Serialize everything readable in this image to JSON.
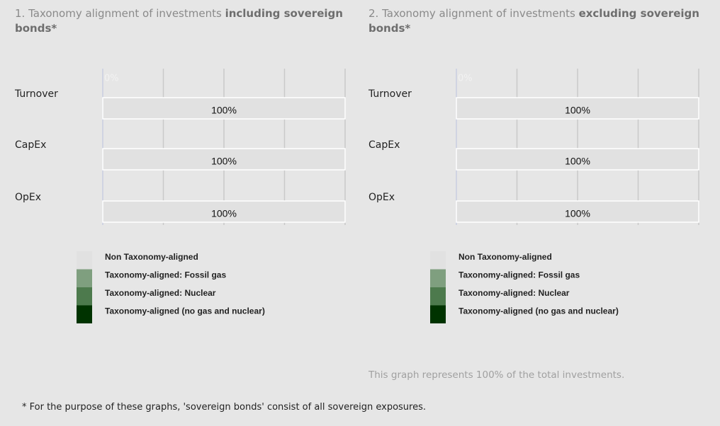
{
  "chart_data": [
    {
      "type": "hbar_stacked",
      "title": [
        "1. Taxonomy alignment of investments ",
        "including sovereign bonds*"
      ],
      "annotation": "0%",
      "categories": [
        "Turnover",
        "CapEx",
        "OpEx"
      ],
      "xlim": [
        0,
        100
      ],
      "xticks": [
        0,
        25,
        50,
        75,
        100
      ],
      "grid": true,
      "series": [
        {
          "name": "Non Taxonomy-aligned",
          "color": "#e1e1e1",
          "values": [
            100,
            100,
            100
          ],
          "value_labels": [
            "100%",
            "100%",
            "100%"
          ]
        },
        {
          "name": "Taxonomy-aligned: Fossil gas",
          "color": "#7f9f7f",
          "values": [
            0,
            0,
            0
          ]
        },
        {
          "name": "Taxonomy-aligned: Nuclear",
          "color": "#4d7a4d",
          "values": [
            0,
            0,
            0
          ]
        },
        {
          "name": "Taxonomy-aligned (no gas and nuclear)",
          "color": "#003300",
          "values": [
            0,
            0,
            0
          ],
          "value_labels": [
            "0%",
            "0%",
            "0%"
          ]
        }
      ]
    },
    {
      "type": "hbar_stacked",
      "title": [
        "2. Taxonomy alignment of investments ",
        "excluding sovereign bonds*"
      ],
      "annotation": "0%",
      "categories": [
        "Turnover",
        "CapEx",
        "OpEx"
      ],
      "xlim": [
        0,
        100
      ],
      "xticks": [
        0,
        25,
        50,
        75,
        100
      ],
      "grid": true,
      "series": [
        {
          "name": "Non Taxonomy-aligned",
          "color": "#e1e1e1",
          "values": [
            100,
            100,
            100
          ],
          "value_labels": [
            "100%",
            "100%",
            "100%"
          ]
        },
        {
          "name": "Taxonomy-aligned: Fossil gas",
          "color": "#7f9f7f",
          "values": [
            0,
            0,
            0
          ]
        },
        {
          "name": "Taxonomy-aligned: Nuclear",
          "color": "#4d7a4d",
          "values": [
            0,
            0,
            0
          ]
        },
        {
          "name": "Taxonomy-aligned (no gas and nuclear)",
          "color": "#003300",
          "values": [
            0,
            0,
            0
          ],
          "value_labels": [
            "0%",
            "0%",
            "0%"
          ]
        }
      ]
    }
  ],
  "notes": {
    "coverage": "This graph represents 100% of the total investments.",
    "footnote": "* For the purpose of these graphs, 'sovereign bonds' consist of all sovereign exposures."
  }
}
